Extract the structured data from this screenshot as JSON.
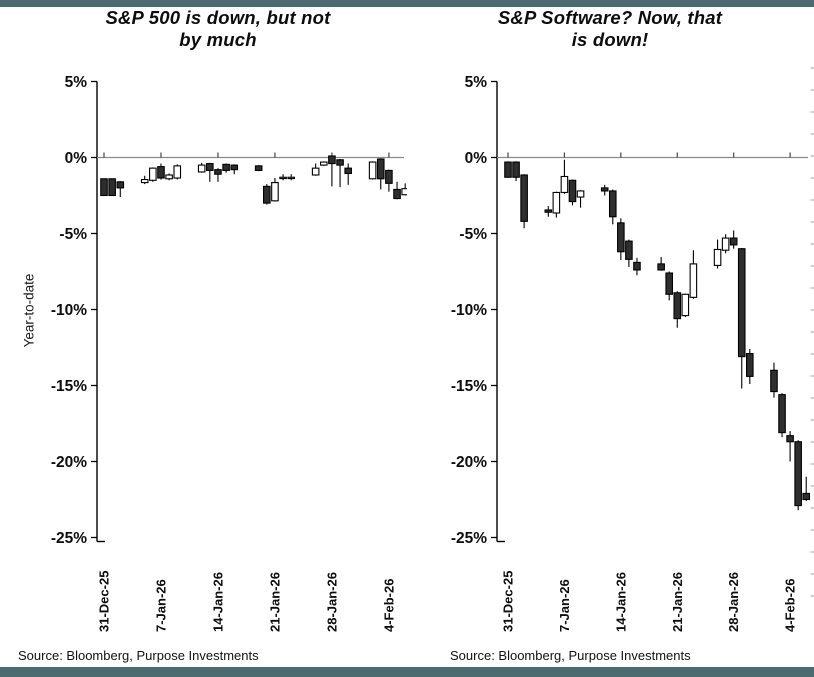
{
  "colors": {
    "accent_bar": "#4c6b70",
    "candle_down_fill": "#2e2e2e",
    "candle_up_fill": "#ffffff",
    "candle_border": "#000000",
    "axis_line": "#000000",
    "zero_line": "#8a8a8a",
    "edge_tick": "#b3b3b3"
  },
  "chart_data": [
    {
      "type": "candlestick",
      "title": "S&P 500 is down, but not by much",
      "ylabel": "Year-to-date",
      "source": "Source: Bloomberg, Purpose Investments",
      "ylim": [
        -25,
        5
      ],
      "grid": false,
      "y_ticks": [
        "5%",
        "0%",
        "-5%",
        "-10%",
        "-15%",
        "-20%",
        "-25%"
      ],
      "y_tick_values": [
        5,
        0,
        -5,
        -10,
        -15,
        -20,
        -25
      ],
      "x_ticks": [
        {
          "label": "31-Dec-25",
          "day": 0
        },
        {
          "label": "7-Jan-26",
          "day": 7
        },
        {
          "label": "14-Jan-26",
          "day": 14
        },
        {
          "label": "21-Jan-26",
          "day": 21
        },
        {
          "label": "28-Jan-26",
          "day": 28
        },
        {
          "label": "4-Feb-26",
          "day": 35
        }
      ],
      "candles": [
        {
          "date": "31-Dec-25",
          "day": 0,
          "open": -1.4,
          "high": -1.4,
          "low": -2.5,
          "close": -2.5
        },
        {
          "date": "1-Jan-26",
          "day": 1,
          "open": -1.4,
          "high": -1.4,
          "low": -2.5,
          "close": -2.5
        },
        {
          "date": "2-Jan-26",
          "day": 2,
          "open": -1.6,
          "high": -1.55,
          "low": -2.6,
          "close": -2.0
        },
        {
          "date": "5-Jan-26",
          "day": 5,
          "open": -1.65,
          "high": -1.2,
          "low": -1.75,
          "close": -1.45
        },
        {
          "date": "6-Jan-26",
          "day": 6,
          "open": -1.5,
          "high": -0.65,
          "low": -1.6,
          "close": -0.7
        },
        {
          "date": "7-Jan-26",
          "day": 7,
          "open": -0.6,
          "high": -0.4,
          "low": -1.45,
          "close": -1.35
        },
        {
          "date": "8-Jan-26",
          "day": 8,
          "open": -1.4,
          "high": -1.05,
          "low": -1.5,
          "close": -1.15
        },
        {
          "date": "9-Jan-26",
          "day": 9,
          "open": -1.35,
          "high": -0.45,
          "low": -1.45,
          "close": -0.55
        },
        {
          "date": "12-Jan-26",
          "day": 12,
          "open": -0.95,
          "high": -0.35,
          "low": -1.0,
          "close": -0.5
        },
        {
          "date": "13-Jan-26",
          "day": 13,
          "open": -0.4,
          "high": -0.35,
          "low": -1.6,
          "close": -0.85
        },
        {
          "date": "14-Jan-26",
          "day": 14,
          "open": -0.8,
          "high": -0.7,
          "low": -1.6,
          "close": -1.1
        },
        {
          "date": "15-Jan-26",
          "day": 15,
          "open": -0.45,
          "high": -0.4,
          "low": -1.0,
          "close": -0.85
        },
        {
          "date": "16-Jan-26",
          "day": 16,
          "open": -0.5,
          "high": -0.45,
          "low": -1.1,
          "close": -0.8
        },
        {
          "date": "19-Jan-26",
          "day": 19,
          "open": -0.55,
          "high": -0.5,
          "low": -0.9,
          "close": -0.85
        },
        {
          "date": "20-Jan-26",
          "day": 20,
          "open": -1.9,
          "high": -1.75,
          "low": -3.1,
          "close": -3.0
        },
        {
          "date": "21-Jan-26",
          "day": 21,
          "open": -2.85,
          "high": -1.35,
          "low": -2.9,
          "close": -1.65
        },
        {
          "date": "22-Jan-26",
          "day": 22,
          "open": -1.3,
          "high": -1.1,
          "low": -1.5,
          "close": -1.3
        },
        {
          "date": "23-Jan-26",
          "day": 23,
          "open": -1.3,
          "high": -1.1,
          "low": -1.5,
          "close": -1.3
        },
        {
          "date": "26-Jan-26",
          "day": 26,
          "open": -1.15,
          "high": -0.4,
          "low": -1.2,
          "close": -0.7
        },
        {
          "date": "27-Jan-26",
          "day": 27,
          "open": -0.5,
          "high": -0.25,
          "low": -0.55,
          "close": -0.3
        },
        {
          "date": "28-Jan-26",
          "day": 28,
          "open": 0.1,
          "high": 0.15,
          "low": -1.9,
          "close": -0.4
        },
        {
          "date": "29-Jan-26",
          "day": 29,
          "open": -0.15,
          "high": -0.1,
          "low": -1.95,
          "close": -0.5
        },
        {
          "date": "30-Jan-26",
          "day": 30,
          "open": -0.7,
          "high": -0.4,
          "low": -1.8,
          "close": -1.05
        },
        {
          "date": "2-Feb-26",
          "day": 33,
          "open": -1.4,
          "high": -0.25,
          "low": -1.45,
          "close": -0.3
        },
        {
          "date": "3-Feb-26",
          "day": 34,
          "open": -0.1,
          "high": -0.05,
          "low": -2.1,
          "close": -1.4
        },
        {
          "date": "4-Feb-26",
          "day": 35,
          "open": -0.85,
          "high": -0.8,
          "low": -2.25,
          "close": -1.7
        },
        {
          "date": "5-Feb-26",
          "day": 36,
          "open": -2.1,
          "high": -1.6,
          "low": -2.75,
          "close": -2.7
        },
        {
          "date": "6-Feb-26",
          "day": 37,
          "open": -2.45,
          "high": -1.7,
          "low": -2.5,
          "close": -2.05
        }
      ]
    },
    {
      "type": "candlestick",
      "title": "S&P Software? Now, that is down!",
      "ylabel": "",
      "source": "Source: Bloomberg, Purpose Investments",
      "ylim": [
        -25,
        5
      ],
      "grid": false,
      "y_ticks": [
        "5%",
        "0%",
        "-5%",
        "-10%",
        "-15%",
        "-20%",
        "-25%"
      ],
      "y_tick_values": [
        5,
        0,
        -5,
        -10,
        -15,
        -20,
        -25
      ],
      "x_ticks": [
        {
          "label": "31-Dec-25",
          "day": 0
        },
        {
          "label": "7-Jan-26",
          "day": 7
        },
        {
          "label": "14-Jan-26",
          "day": 14
        },
        {
          "label": "21-Jan-26",
          "day": 21
        },
        {
          "label": "28-Jan-26",
          "day": 28
        },
        {
          "label": "4-Feb-26",
          "day": 35
        }
      ],
      "candles": [
        {
          "date": "31-Dec-25",
          "day": 0,
          "open": -0.3,
          "high": -0.25,
          "low": -1.3,
          "close": -1.3
        },
        {
          "date": "1-Jan-26",
          "day": 1,
          "open": -0.3,
          "high": -0.25,
          "low": -1.55,
          "close": -1.3
        },
        {
          "date": "2-Jan-26",
          "day": 2,
          "open": -1.15,
          "high": -1.1,
          "low": -4.65,
          "close": -4.2
        },
        {
          "date": "5-Jan-26",
          "day": 5,
          "open": -3.45,
          "high": -3.2,
          "low": -3.9,
          "close": -3.6
        },
        {
          "date": "6-Jan-26",
          "day": 6,
          "open": -3.65,
          "high": -2.25,
          "low": -3.95,
          "close": -2.3
        },
        {
          "date": "7-Jan-26",
          "day": 7,
          "open": -2.3,
          "high": -0.15,
          "low": -2.4,
          "close": -1.25
        },
        {
          "date": "8-Jan-26",
          "day": 8,
          "open": -1.5,
          "high": -1.45,
          "low": -3.15,
          "close": -2.9
        },
        {
          "date": "9-Jan-26",
          "day": 9,
          "open": -2.6,
          "high": -2.15,
          "low": -3.3,
          "close": -2.2
        },
        {
          "date": "12-Jan-26",
          "day": 12,
          "open": -2.0,
          "high": -1.8,
          "low": -2.5,
          "close": -2.2
        },
        {
          "date": "13-Jan-26",
          "day": 13,
          "open": -2.2,
          "high": -2.1,
          "low": -4.4,
          "close": -3.9
        },
        {
          "date": "14-Jan-26",
          "day": 14,
          "open": -4.3,
          "high": -4.0,
          "low": -6.75,
          "close": -6.2
        },
        {
          "date": "15-Jan-26",
          "day": 15,
          "open": -5.5,
          "high": -5.4,
          "low": -7.2,
          "close": -6.7
        },
        {
          "date": "16-Jan-26",
          "day": 16,
          "open": -6.9,
          "high": -6.6,
          "low": -7.75,
          "close": -7.4
        },
        {
          "date": "19-Jan-26",
          "day": 19,
          "open": -7.0,
          "high": -6.55,
          "low": -7.45,
          "close": -7.4
        },
        {
          "date": "20-Jan-26",
          "day": 20,
          "open": -7.6,
          "high": -7.5,
          "low": -9.4,
          "close": -9.0
        },
        {
          "date": "21-Jan-26",
          "day": 21,
          "open": -8.9,
          "high": -8.8,
          "low": -11.2,
          "close": -10.6
        },
        {
          "date": "22-Jan-26",
          "day": 22,
          "open": -10.4,
          "high": -8.95,
          "low": -10.5,
          "close": -9.0
        },
        {
          "date": "23-Jan-26",
          "day": 23,
          "open": -9.2,
          "high": -6.1,
          "low": -9.3,
          "close": -7.0
        },
        {
          "date": "26-Jan-26",
          "day": 26,
          "open": -7.1,
          "high": -5.4,
          "low": -7.3,
          "close": -6.05
        },
        {
          "date": "27-Jan-26",
          "day": 27,
          "open": -6.1,
          "high": -5.05,
          "low": -6.3,
          "close": -5.3
        },
        {
          "date": "28-Jan-26",
          "day": 28,
          "open": -5.3,
          "high": -4.8,
          "low": -6.0,
          "close": -5.75
        },
        {
          "date": "29-Jan-26",
          "day": 29,
          "open": -6.0,
          "high": -5.95,
          "low": -15.2,
          "close": -13.1
        },
        {
          "date": "30-Jan-26",
          "day": 30,
          "open": -12.9,
          "high": -12.6,
          "low": -14.9,
          "close": -14.4
        },
        {
          "date": "2-Feb-26",
          "day": 33,
          "open": -14.0,
          "high": -13.5,
          "low": -15.8,
          "close": -15.4
        },
        {
          "date": "3-Feb-26",
          "day": 34,
          "open": -15.6,
          "high": -15.5,
          "low": -18.4,
          "close": -18.1
        },
        {
          "date": "4-Feb-26",
          "day": 35,
          "open": -18.3,
          "high": -18.0,
          "low": -20.0,
          "close": -18.7
        },
        {
          "date": "5-Feb-26",
          "day": 36,
          "open": -18.7,
          "high": -18.6,
          "low": -23.2,
          "close": -22.9
        },
        {
          "date": "6-Feb-26",
          "day": 37,
          "open": -22.1,
          "high": -21.0,
          "low": -22.6,
          "close": -22.5
        }
      ]
    }
  ]
}
